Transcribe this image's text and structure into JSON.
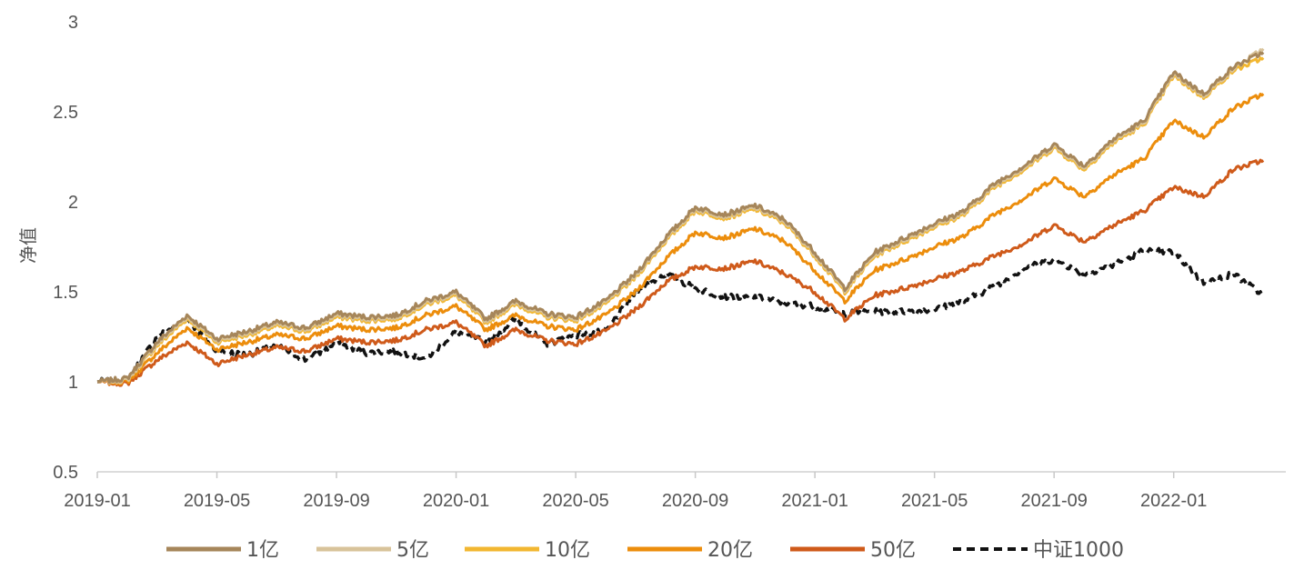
{
  "chart_data": {
    "type": "line",
    "ylabel": "净值",
    "xlabel": "",
    "ylim": [
      0.5,
      3
    ],
    "yticks": [
      "0.5",
      "1",
      "1.5",
      "2",
      "2.5",
      "3"
    ],
    "xticks": [
      "2019-01",
      "2019-05",
      "2019-09",
      "2020-01",
      "2020-05",
      "2020-09",
      "2021-01",
      "2021-05",
      "2021-09",
      "2022-01"
    ],
    "x": [
      "2019-01",
      "2019-02",
      "2019-03",
      "2019-04",
      "2019-05",
      "2019-06",
      "2019-07",
      "2019-08",
      "2019-09",
      "2019-10",
      "2019-11",
      "2019-12",
      "2020-01",
      "2020-02",
      "2020-03",
      "2020-04",
      "2020-05",
      "2020-06",
      "2020-07",
      "2020-08",
      "2020-09",
      "2020-10",
      "2020-11",
      "2020-12",
      "2021-01",
      "2021-02",
      "2021-03",
      "2021-04",
      "2021-05",
      "2021-06",
      "2021-07",
      "2021-08",
      "2021-09",
      "2021-10",
      "2021-11",
      "2021-12",
      "2022-01",
      "2022-02",
      "2022-03",
      "2022-04"
    ],
    "legend_position": "bottom",
    "series": [
      {
        "name": "1亿",
        "color": "#A6865A",
        "dash": false,
        "values": [
          1.0,
          1.02,
          1.22,
          1.37,
          1.24,
          1.28,
          1.33,
          1.3,
          1.38,
          1.36,
          1.37,
          1.45,
          1.5,
          1.35,
          1.45,
          1.38,
          1.36,
          1.45,
          1.6,
          1.8,
          1.97,
          1.93,
          1.98,
          1.9,
          1.72,
          1.52,
          1.72,
          1.8,
          1.88,
          1.95,
          2.1,
          2.2,
          2.32,
          2.2,
          2.35,
          2.45,
          2.72,
          2.6,
          2.75,
          2.83
        ]
      },
      {
        "name": "5亿",
        "color": "#D8C39A",
        "dash": false,
        "values": [
          1.0,
          1.01,
          1.21,
          1.36,
          1.23,
          1.27,
          1.32,
          1.29,
          1.37,
          1.35,
          1.36,
          1.44,
          1.49,
          1.34,
          1.44,
          1.37,
          1.35,
          1.44,
          1.59,
          1.79,
          1.96,
          1.92,
          1.97,
          1.89,
          1.71,
          1.51,
          1.71,
          1.79,
          1.87,
          1.94,
          2.09,
          2.19,
          2.31,
          2.19,
          2.34,
          2.44,
          2.71,
          2.59,
          2.74,
          2.85
        ]
      },
      {
        "name": "10亿",
        "color": "#F2B731",
        "dash": false,
        "values": [
          1.0,
          1.01,
          1.2,
          1.35,
          1.22,
          1.26,
          1.31,
          1.28,
          1.36,
          1.34,
          1.35,
          1.43,
          1.48,
          1.33,
          1.43,
          1.36,
          1.34,
          1.43,
          1.58,
          1.78,
          1.95,
          1.91,
          1.96,
          1.88,
          1.7,
          1.5,
          1.7,
          1.78,
          1.86,
          1.93,
          2.08,
          2.18,
          2.3,
          2.18,
          2.33,
          2.43,
          2.7,
          2.58,
          2.73,
          2.8
        ]
      },
      {
        "name": "20亿",
        "color": "#EC8D0C",
        "dash": false,
        "values": [
          1.0,
          1.0,
          1.16,
          1.3,
          1.18,
          1.22,
          1.26,
          1.24,
          1.31,
          1.29,
          1.3,
          1.37,
          1.42,
          1.29,
          1.37,
          1.31,
          1.29,
          1.37,
          1.5,
          1.68,
          1.83,
          1.8,
          1.85,
          1.78,
          1.62,
          1.45,
          1.62,
          1.68,
          1.75,
          1.81,
          1.93,
          2.02,
          2.13,
          2.03,
          2.15,
          2.24,
          2.45,
          2.36,
          2.52,
          2.6
        ]
      },
      {
        "name": "50亿",
        "color": "#CF5A1A",
        "dash": false,
        "values": [
          1.0,
          0.99,
          1.12,
          1.22,
          1.1,
          1.15,
          1.19,
          1.17,
          1.24,
          1.22,
          1.23,
          1.29,
          1.33,
          1.2,
          1.29,
          1.23,
          1.21,
          1.28,
          1.4,
          1.55,
          1.64,
          1.63,
          1.67,
          1.6,
          1.5,
          1.35,
          1.48,
          1.52,
          1.57,
          1.62,
          1.7,
          1.77,
          1.87,
          1.78,
          1.87,
          1.95,
          2.08,
          2.03,
          2.18,
          2.23
        ]
      },
      {
        "name": "中证1000",
        "color": "#111111",
        "dash": true,
        "values": [
          1.0,
          1.01,
          1.25,
          1.35,
          1.17,
          1.15,
          1.2,
          1.12,
          1.22,
          1.16,
          1.17,
          1.13,
          1.28,
          1.22,
          1.35,
          1.21,
          1.26,
          1.28,
          1.5,
          1.6,
          1.52,
          1.47,
          1.47,
          1.44,
          1.42,
          1.38,
          1.39,
          1.39,
          1.4,
          1.45,
          1.53,
          1.63,
          1.68,
          1.6,
          1.65,
          1.73,
          1.72,
          1.55,
          1.6,
          1.48
        ]
      }
    ]
  }
}
